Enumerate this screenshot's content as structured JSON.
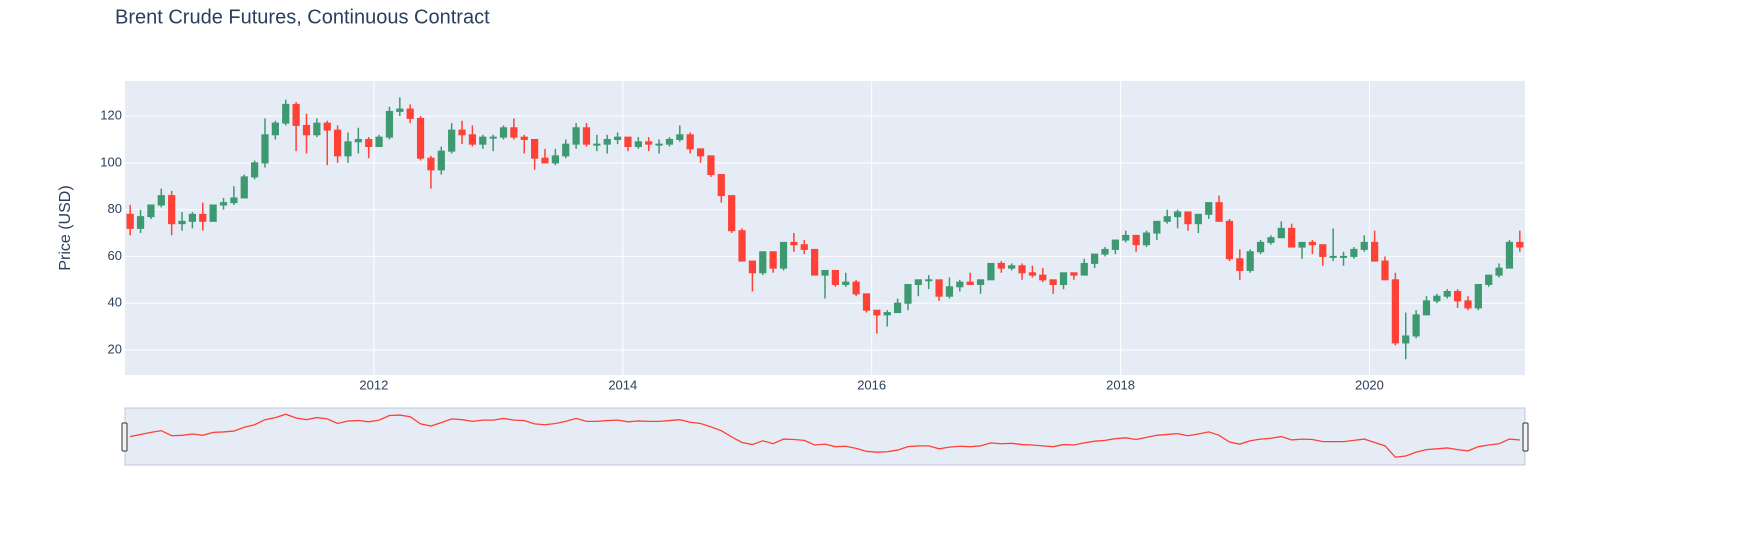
{
  "chart_data": {
    "type": "candlestick",
    "title": "Brent Crude Futures, Continuous Contract",
    "y_label": "Price (USD)",
    "increasing_color": "#3D9970",
    "decreasing_color": "#FF4136",
    "grid": true,
    "rangeslider": true,
    "xlim": [
      "2010-01",
      "2021-03"
    ],
    "ylim": [
      9.3,
      135
    ],
    "yticks": [
      20,
      40,
      60,
      80,
      100,
      120
    ],
    "xticks": [
      {
        "value": "2012-01",
        "label": "2012"
      },
      {
        "value": "2014-01",
        "label": "2014"
      },
      {
        "value": "2016-01",
        "label": "2016"
      },
      {
        "value": "2018-01",
        "label": "2018"
      },
      {
        "value": "2020-01",
        "label": "2020"
      }
    ],
    "x": [
      "2010-01",
      "2010-02",
      "2010-03",
      "2010-04",
      "2010-05",
      "2010-06",
      "2010-07",
      "2010-08",
      "2010-09",
      "2010-10",
      "2010-11",
      "2010-12",
      "2011-01",
      "2011-02",
      "2011-03",
      "2011-04",
      "2011-05",
      "2011-06",
      "2011-07",
      "2011-08",
      "2011-09",
      "2011-10",
      "2011-11",
      "2011-12",
      "2012-01",
      "2012-02",
      "2012-03",
      "2012-04",
      "2012-05",
      "2012-06",
      "2012-07",
      "2012-08",
      "2012-09",
      "2012-10",
      "2012-11",
      "2012-12",
      "2013-01",
      "2013-02",
      "2013-03",
      "2013-04",
      "2013-05",
      "2013-06",
      "2013-07",
      "2013-08",
      "2013-09",
      "2013-10",
      "2013-11",
      "2013-12",
      "2014-01",
      "2014-02",
      "2014-03",
      "2014-04",
      "2014-05",
      "2014-06",
      "2014-07",
      "2014-08",
      "2014-09",
      "2014-10",
      "2014-11",
      "2014-12",
      "2015-01",
      "2015-02",
      "2015-03",
      "2015-04",
      "2015-05",
      "2015-06",
      "2015-07",
      "2015-08",
      "2015-09",
      "2015-10",
      "2015-11",
      "2015-12",
      "2016-01",
      "2016-02",
      "2016-03",
      "2016-04",
      "2016-05",
      "2016-06",
      "2016-07",
      "2016-08",
      "2016-09",
      "2016-10",
      "2016-11",
      "2016-12",
      "2017-01",
      "2017-02",
      "2017-03",
      "2017-04",
      "2017-05",
      "2017-06",
      "2017-07",
      "2017-08",
      "2017-09",
      "2017-10",
      "2017-11",
      "2017-12",
      "2018-01",
      "2018-02",
      "2018-03",
      "2018-04",
      "2018-05",
      "2018-06",
      "2018-07",
      "2018-08",
      "2018-09",
      "2018-10",
      "2018-11",
      "2018-12",
      "2019-01",
      "2019-02",
      "2019-03",
      "2019-04",
      "2019-05",
      "2019-06",
      "2019-07",
      "2019-08",
      "2019-09",
      "2019-10",
      "2019-11",
      "2019-12",
      "2020-01",
      "2020-02",
      "2020-03",
      "2020-04",
      "2020-05",
      "2020-06",
      "2020-07",
      "2020-08",
      "2020-09",
      "2020-10",
      "2020-11",
      "2020-12",
      "2021-01",
      "2021-02",
      "2021-03"
    ],
    "open": [
      78,
      72,
      77,
      82,
      86,
      74,
      75,
      78,
      75,
      82,
      83,
      85,
      94,
      100,
      112,
      117,
      125,
      116,
      112,
      117,
      114,
      103,
      109,
      110,
      107,
      111,
      122,
      123,
      119,
      102,
      97,
      105,
      114,
      112,
      108,
      111,
      111,
      115,
      111,
      110,
      102,
      100,
      103,
      108,
      115,
      108,
      108,
      110,
      111,
      107,
      109,
      108,
      108,
      110,
      112,
      106,
      103,
      95,
      86,
      71,
      58,
      53,
      62,
      55,
      66,
      65,
      63,
      52,
      54,
      48,
      49,
      44,
      37,
      35,
      36,
      40,
      48,
      50,
      50,
      43,
      47,
      49,
      48,
      50,
      57,
      55,
      56,
      53,
      52,
      50,
      48,
      53,
      52,
      57,
      61,
      63,
      67,
      69,
      65,
      70,
      75,
      77,
      79,
      74,
      78,
      83,
      75,
      59,
      54,
      62,
      66,
      68,
      72,
      64,
      66,
      65,
      60,
      60,
      60,
      63,
      66,
      58,
      50,
      23,
      26,
      35,
      41,
      43,
      45,
      41,
      38,
      48,
      52,
      55,
      66
    ],
    "high": [
      82,
      80,
      82,
      89,
      88,
      79,
      79,
      83,
      82,
      85,
      90,
      95,
      101,
      119,
      118,
      127,
      126,
      121,
      119,
      118,
      116,
      113,
      115,
      111,
      112,
      124,
      128,
      125,
      120,
      103,
      107,
      117,
      118,
      116,
      112,
      112,
      116,
      119,
      112,
      110,
      106,
      106,
      110,
      117,
      117,
      112,
      112,
      113,
      111,
      111,
      111,
      110,
      111,
      116,
      113,
      106,
      103,
      95,
      86,
      72,
      58,
      62,
      62,
      66,
      70,
      67,
      63,
      54,
      54,
      53,
      50,
      44,
      37,
      37,
      42,
      48,
      50,
      52,
      50,
      51,
      50,
      53,
      50,
      56,
      58,
      57,
      57,
      56,
      55,
      50,
      53,
      53,
      59,
      61,
      64,
      67,
      71,
      69,
      71,
      75,
      80,
      80,
      79,
      78,
      83,
      86,
      76,
      63,
      63,
      67,
      69,
      75,
      74,
      66,
      67,
      65,
      72,
      62,
      64,
      69,
      71,
      60,
      53,
      36,
      37,
      43,
      44,
      46,
      46,
      43,
      48,
      52,
      57,
      67,
      71
    ],
    "low": [
      69,
      70,
      76,
      81,
      69,
      71,
      72,
      71,
      75,
      80,
      82,
      85,
      93,
      98,
      110,
      116,
      105,
      104,
      111,
      99,
      100,
      100,
      104,
      102,
      107,
      110,
      120,
      117,
      101,
      89,
      95,
      104,
      108,
      107,
      106,
      105,
      110,
      110,
      104,
      97,
      100,
      99,
      102,
      106,
      107,
      105,
      104,
      108,
      105,
      106,
      105,
      104,
      107,
      109,
      104,
      100,
      94,
      83,
      70,
      58,
      45,
      52,
      53,
      54,
      62,
      61,
      52,
      42,
      47,
      47,
      43,
      36,
      27,
      30,
      36,
      37,
      43,
      46,
      41,
      42,
      45,
      48,
      44,
      50,
      53,
      54,
      50,
      51,
      49,
      44,
      46,
      50,
      52,
      55,
      60,
      61,
      66,
      62,
      64,
      67,
      74,
      72,
      71,
      70,
      76,
      75,
      58,
      50,
      53,
      61,
      65,
      68,
      64,
      59,
      61,
      56,
      58,
      56,
      59,
      62,
      58,
      50,
      22,
      16,
      25,
      35,
      40,
      42,
      38,
      37,
      37,
      47,
      51,
      55,
      62
    ],
    "close": [
      72,
      77,
      82,
      86,
      74,
      75,
      78,
      75,
      82,
      83,
      85,
      94,
      100,
      112,
      117,
      125,
      116,
      112,
      117,
      114,
      103,
      109,
      110,
      107,
      111,
      122,
      123,
      119,
      102,
      97,
      105,
      114,
      112,
      108,
      111,
      111,
      115,
      111,
      110,
      102,
      100,
      103,
      108,
      115,
      108,
      108,
      110,
      111,
      107,
      109,
      108,
      108,
      110,
      112,
      106,
      103,
      95,
      86,
      71,
      58,
      53,
      62,
      55,
      66,
      65,
      63,
      52,
      54,
      48,
      49,
      44,
      37,
      35,
      36,
      40,
      48,
      50,
      50,
      43,
      47,
      49,
      48,
      50,
      57,
      55,
      56,
      53,
      52,
      50,
      48,
      53,
      52,
      57,
      61,
      63,
      67,
      69,
      65,
      70,
      75,
      77,
      79,
      74,
      78,
      83,
      75,
      59,
      54,
      62,
      66,
      68,
      72,
      64,
      66,
      65,
      60,
      60,
      60,
      63,
      66,
      58,
      50,
      23,
      26,
      35,
      41,
      43,
      45,
      41,
      38,
      48,
      52,
      55,
      66,
      64
    ]
  }
}
